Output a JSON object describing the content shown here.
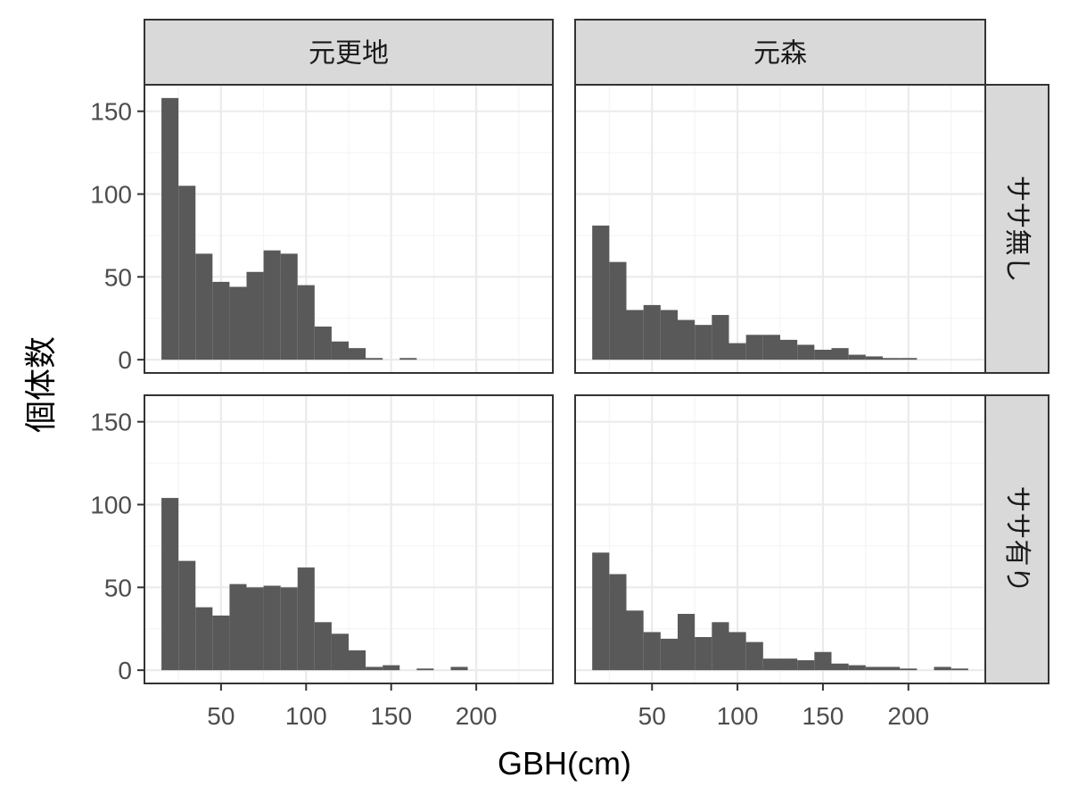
{
  "chart_data": {
    "type": "bar",
    "title": "",
    "xlabel": "GBH(cm)",
    "ylabel": "個体数",
    "xlim": [
      5,
      245
    ],
    "ylim": [
      -8,
      166
    ],
    "xticks": [
      50,
      100,
      150,
      200
    ],
    "yticks": [
      0,
      50,
      100,
      150
    ],
    "bin_width": 10,
    "bin_starts": [
      15,
      25,
      35,
      45,
      55,
      65,
      75,
      85,
      95,
      105,
      115,
      125,
      135,
      145,
      155,
      165,
      175,
      185,
      195,
      205,
      215,
      225
    ],
    "col_labels": [
      "元更地",
      "元森"
    ],
    "row_labels": [
      "ササ無し",
      "ササ有り"
    ],
    "grid": true,
    "bar_color": "#595959",
    "strip_color": "#d9d9d9",
    "panels": [
      {
        "col": "元更地",
        "row": "ササ無し",
        "values": [
          158,
          105,
          64,
          47,
          44,
          53,
          66,
          64,
          45,
          20,
          11,
          7,
          1,
          0,
          1,
          0,
          0,
          0,
          0,
          0,
          0,
          0
        ]
      },
      {
        "col": "元森",
        "row": "ササ無し",
        "values": [
          81,
          59,
          30,
          33,
          30,
          24,
          21,
          27,
          10,
          15,
          15,
          12,
          9,
          6,
          7,
          3,
          2,
          1,
          1,
          0,
          0,
          0
        ]
      },
      {
        "col": "元更地",
        "row": "ササ有り",
        "values": [
          104,
          66,
          38,
          33,
          52,
          50,
          51,
          50,
          62,
          29,
          22,
          12,
          2,
          3,
          0,
          1,
          0,
          2,
          0,
          0,
          0,
          0
        ]
      },
      {
        "col": "元森",
        "row": "ササ有り",
        "values": [
          71,
          58,
          36,
          23,
          19,
          34,
          20,
          29,
          23,
          17,
          7,
          7,
          6,
          11,
          4,
          3,
          2,
          2,
          1,
          0,
          2,
          1
        ]
      }
    ]
  }
}
